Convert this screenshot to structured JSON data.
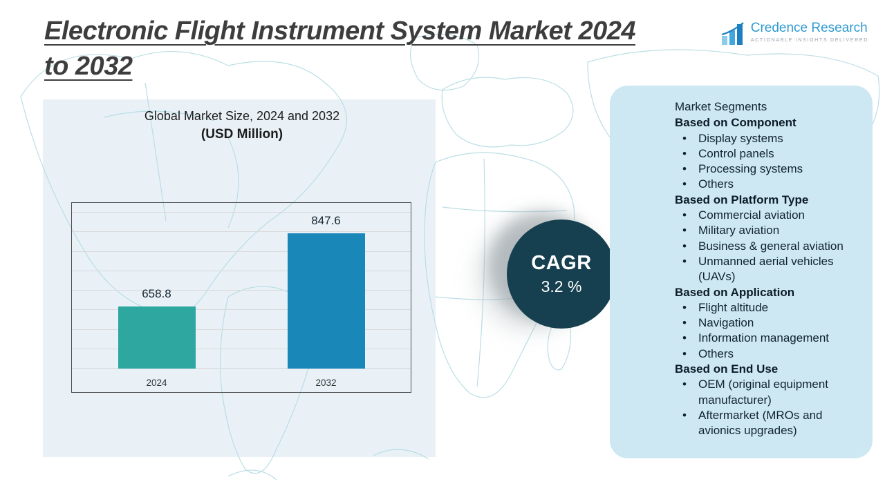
{
  "title": {
    "line1": "Electronic Flight Instrument System Market 2024",
    "line2": "to 2032"
  },
  "logo": {
    "name": "Credence Research",
    "tagline": "ACTIONABLE INSIGHTS DELIVERED"
  },
  "chart_data": {
    "type": "bar",
    "title": "Global Market Size, 2024 and 2032",
    "subtitle": "(USD Million)",
    "categories": [
      "2024",
      "2032"
    ],
    "values": [
      658.8,
      847.6
    ],
    "bar_colors": [
      "#2fa7a1",
      "#1987b8"
    ],
    "ylim": [
      500,
      900
    ],
    "gridline_step": 50,
    "grid": "on",
    "legend": "none"
  },
  "cagr": {
    "label": "CAGR",
    "value": "3.2 %"
  },
  "segments": {
    "title": "Market Segments",
    "groups": [
      {
        "heading": "Based on Component",
        "items": [
          "Display systems",
          "Control panels",
          "Processing systems",
          "Others"
        ]
      },
      {
        "heading": "Based on Platform Type",
        "items": [
          "Commercial aviation",
          "Military aviation",
          "Business & general aviation",
          "Unmanned aerial vehicles (UAVs)"
        ]
      },
      {
        "heading": "Based on Application",
        "items": [
          "Flight altitude",
          "Navigation",
          "Information management",
          "Others"
        ]
      },
      {
        "heading": "Based on End Use",
        "items": [
          "OEM (original equipment manufacturer)",
          "Aftermarket (MROs and avionics upgrades)"
        ]
      }
    ]
  },
  "colors": {
    "accent_blue": "#2e9ad0",
    "cagr_circle": "#16404f",
    "segments_panel": "#cde8f3",
    "left_panel": "#e4eef5",
    "map_line": "#b4dbe3"
  }
}
